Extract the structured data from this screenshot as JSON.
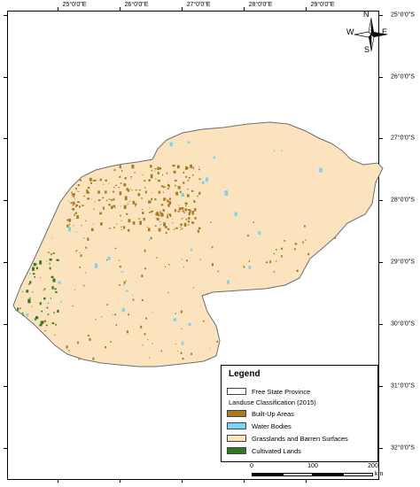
{
  "map": {
    "longitude_labels": [
      "25°0'0\"E",
      "26°0'0\"E",
      "27°0'0\"E",
      "28°0'0\"E",
      "29°0'0\"E"
    ],
    "latitude_labels": [
      "25°0'0\"S",
      "26°0'0\"S",
      "27°0'0\"S",
      "28°0'0\"S",
      "29°0'0\"S",
      "30°0'0\"S",
      "31°0'0\"S",
      "32°0'0\"S"
    ],
    "colors": {
      "province_outline": "#6e6e6e",
      "grasslands": "#fbe4bd",
      "built_up": "#a87a24",
      "water": "#78d6f2",
      "cultivated": "#2f7a1e"
    }
  },
  "compass": {
    "north": "N",
    "south": "S",
    "east": "E",
    "west": "W"
  },
  "legend": {
    "title": "Legend",
    "province": "Free State Province",
    "classification_title": "Landuse Classification (2015)",
    "items": [
      {
        "label": "Built-Up Areas",
        "color": "#a87a24"
      },
      {
        "label": "Water Bodies",
        "color": "#78d6f2"
      },
      {
        "label": "Grasslands and Barren Surfaces",
        "color": "#fbe4bd"
      },
      {
        "label": "Cultivated Lands",
        "color": "#2f7a1e"
      }
    ]
  },
  "scale_bar": {
    "labels": [
      "0",
      "100",
      "200"
    ],
    "unit": "km"
  }
}
